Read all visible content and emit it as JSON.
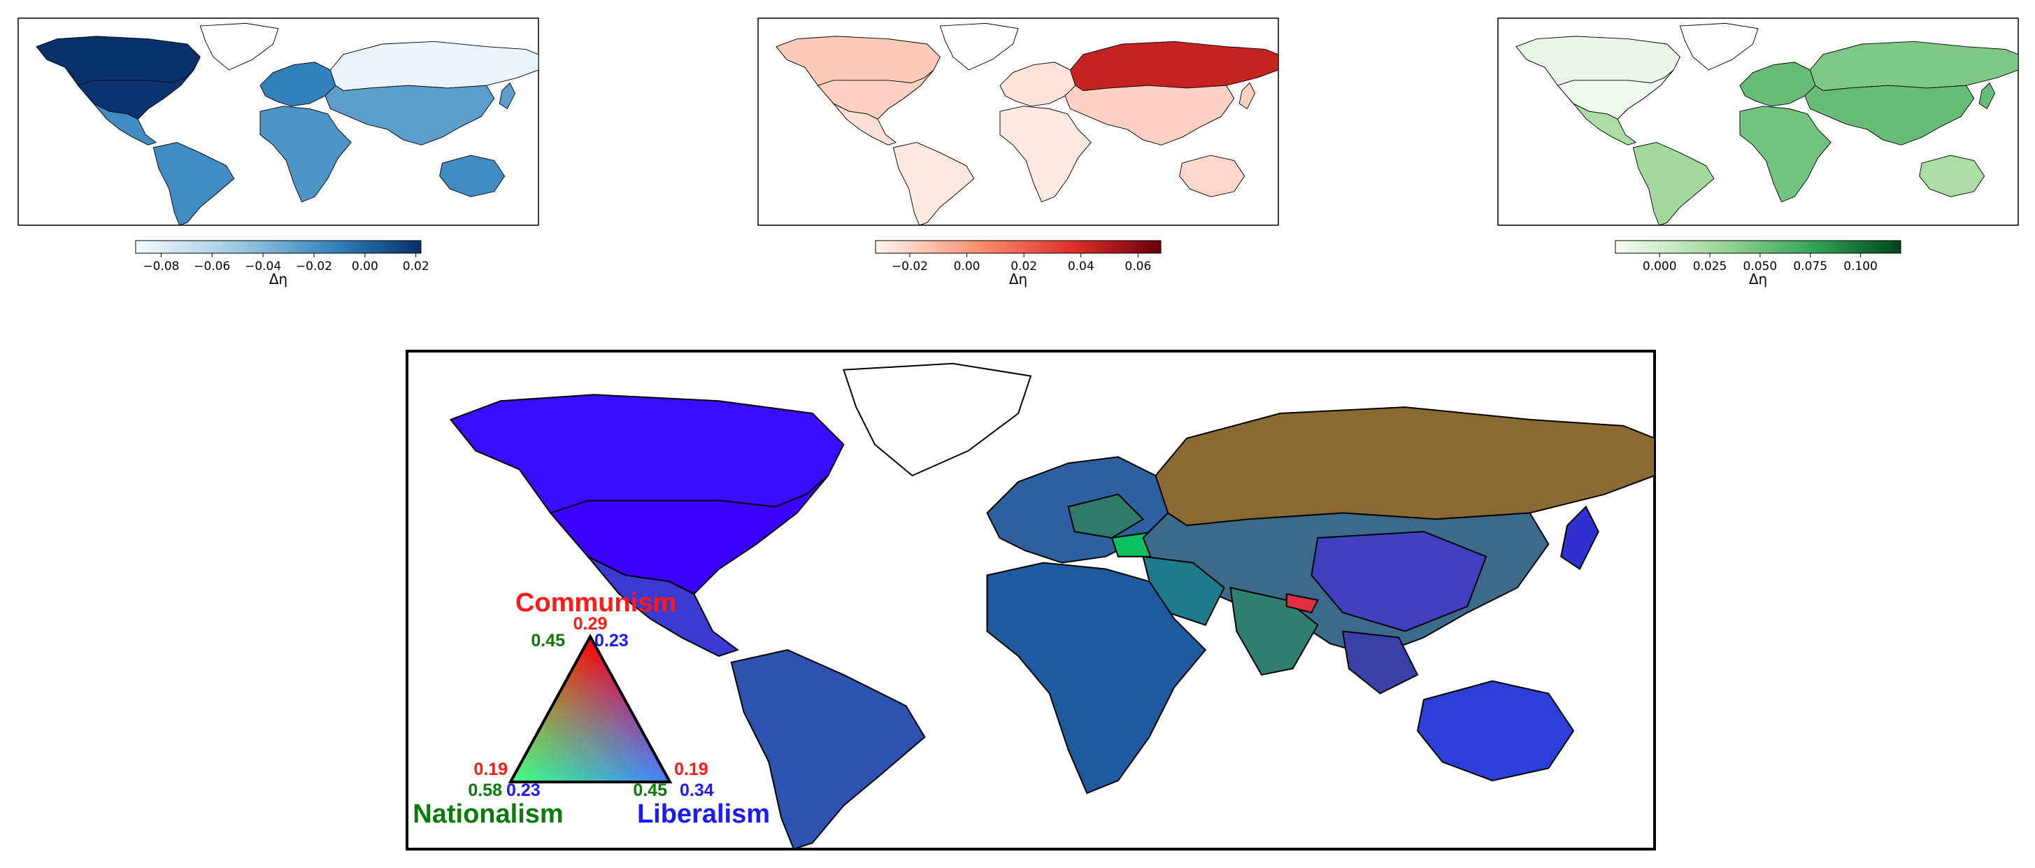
{
  "colors": {
    "blue_dark": "#08306b",
    "blue_mid": "#3b82c4",
    "blue_light": "#d6e4f4",
    "red_dark": "#67000d",
    "red_mid": "#f4533a",
    "red_light": "#fdd5c4",
    "green_dark": "#00441b",
    "green_mid": "#74c476",
    "green_light": "#edf8e9",
    "communism": "#ff1a1a",
    "nationalism": "#0a7a0a",
    "liberalism": "#1a1aff"
  },
  "panels": [
    {
      "id": "liberalism-delta",
      "colormap": "blues",
      "colorbar": {
        "label": "Δη",
        "range": [
          -0.09,
          0.022
        ],
        "ticks": [
          {
            "value": -0.08,
            "label": "−0.08"
          },
          {
            "value": -0.06,
            "label": "−0.06"
          },
          {
            "value": -0.04,
            "label": "−0.04"
          },
          {
            "value": -0.02,
            "label": "−0.02"
          },
          {
            "value": 0.0,
            "label": "0.00"
          },
          {
            "value": 0.02,
            "label": "0.02"
          }
        ]
      },
      "regions": {
        "north_america": 0.022,
        "usa": 0.02,
        "canada": 0.005,
        "mexico": -0.02,
        "south_america": -0.02,
        "europe": -0.015,
        "russia": -0.085,
        "asia": -0.03,
        "africa": -0.025,
        "oceania": -0.02,
        "greenland": null
      }
    },
    {
      "id": "communism-delta",
      "colormap": "reds",
      "colorbar": {
        "label": "Δη",
        "range": [
          -0.032,
          0.068
        ],
        "ticks": [
          {
            "value": -0.02,
            "label": "−0.02"
          },
          {
            "value": 0.0,
            "label": "0.00"
          },
          {
            "value": 0.02,
            "label": "0.02"
          },
          {
            "value": 0.04,
            "label": "0.04"
          },
          {
            "value": 0.06,
            "label": "0.06"
          }
        ]
      },
      "regions": {
        "north_america": -0.018,
        "usa": -0.02,
        "canada": -0.018,
        "mexico": -0.025,
        "south_america": -0.028,
        "europe": -0.026,
        "russia": 0.042,
        "asia": -0.02,
        "africa": -0.028,
        "oceania": -0.022,
        "greenland": null
      }
    },
    {
      "id": "nationalism-delta",
      "colormap": "greens",
      "colorbar": {
        "label": "Δη",
        "range": [
          -0.022,
          0.12
        ],
        "ticks": [
          {
            "value": 0.0,
            "label": "0.000"
          },
          {
            "value": 0.025,
            "label": "0.025"
          },
          {
            "value": 0.05,
            "label": "0.050"
          },
          {
            "value": 0.075,
            "label": "0.075"
          },
          {
            "value": 0.1,
            "label": "0.100"
          }
        ]
      },
      "regions": {
        "north_america": -0.015,
        "usa": -0.018,
        "canada": -0.015,
        "mexico": 0.02,
        "south_america": 0.025,
        "europe": 0.05,
        "russia": 0.04,
        "asia": 0.05,
        "africa": 0.045,
        "oceania": 0.02,
        "greenland": null
      }
    }
  ],
  "ternary": {
    "title_communism": "Communism",
    "title_nationalism": "Nationalism",
    "title_liberalism": "Liberalism",
    "top_vertex": {
      "communism": "0.29",
      "nationalism": "0.45",
      "liberalism": "0.23"
    },
    "left_vertex": {
      "communism": "0.19",
      "nationalism": "0.58",
      "liberalism": "0.23"
    },
    "right_vertex": {
      "communism": "0.19",
      "nationalism": "0.45",
      "liberalism": "0.34"
    }
  },
  "main_map": {
    "regions": {
      "north_america": "#3b0dff",
      "usa": "#3c00ff",
      "canada": "#3b10f5",
      "mexico": "#3a3ad0",
      "central_america": "#3740b8",
      "south_america": "#2d52b0",
      "europe": "#2d60a0",
      "central_europe": "#2f7a6a",
      "turkey": "#10c060",
      "russia": "#8a6a30",
      "central_asia": "#3c6a8a",
      "middle_east": "#1f7a8a",
      "south_asia": "#2f8070",
      "china": "#4040c0",
      "southeast_asia": "#3a40a8",
      "africa": "#1f5aa0",
      "australia": "#2a40d8",
      "japan": "#3030d0",
      "nepal": "#e03040",
      "greenland": "#ffffff"
    }
  }
}
